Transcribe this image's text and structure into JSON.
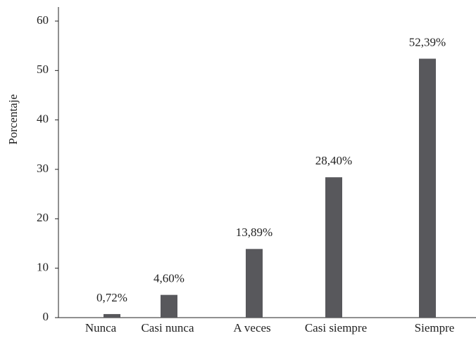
{
  "chart_data": {
    "type": "bar",
    "y_label": "Porcentaje",
    "categories": [
      "Nunca",
      "Casi nunca",
      "A veces",
      "Casi siempre",
      "Siempre"
    ],
    "values": [
      0.72,
      4.6,
      13.89,
      28.4,
      52.39
    ],
    "value_labels": [
      "0,72%",
      "4,60%",
      "13,89%",
      "28,40%",
      "52,39%"
    ],
    "color": "#58585c",
    "ylim": [
      0,
      60
    ],
    "yticks": [
      0,
      10,
      20,
      30,
      40,
      50,
      60
    ],
    "grid": false
  }
}
